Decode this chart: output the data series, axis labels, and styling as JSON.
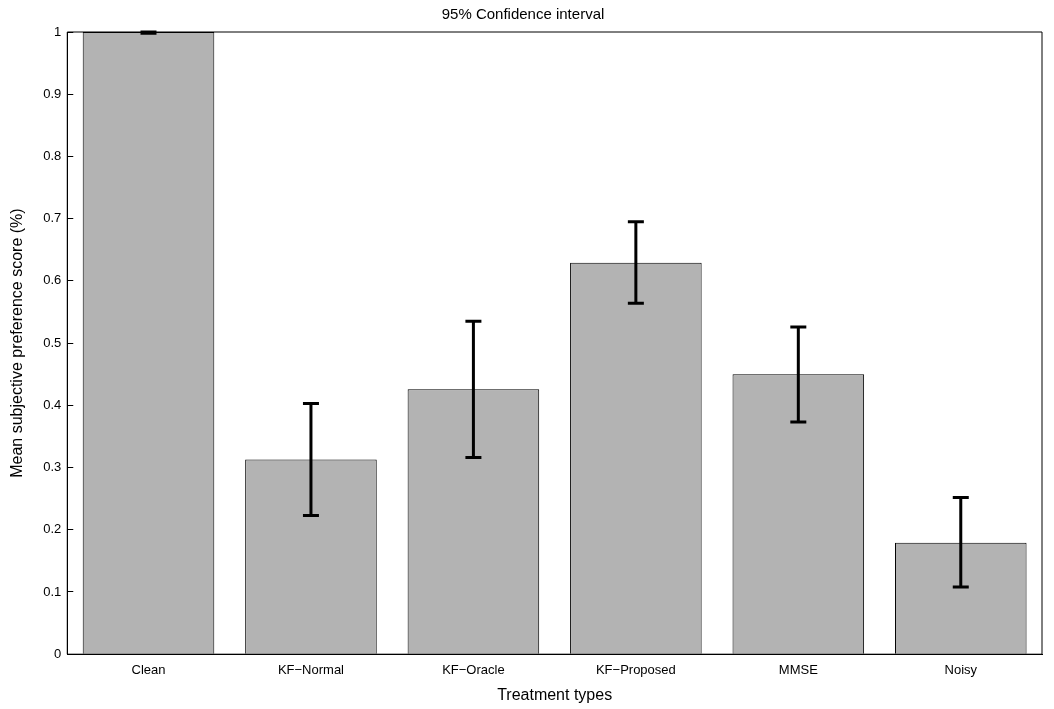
{
  "chart_data": {
    "type": "bar",
    "title": "95% Confidence interval",
    "xlabel": "Treatment types",
    "ylabel": "Mean subjective preference score (%)",
    "categories": [
      "Clean",
      "KF−Normal",
      "KF−Oracle",
      "KF−Proposed",
      "MMSE",
      "Noisy"
    ],
    "values": [
      1.0,
      0.313,
      0.426,
      0.629,
      0.45,
      0.179
    ],
    "errors": [
      [
        0.998,
        1.0
      ],
      [
        0.223,
        0.403
      ],
      [
        0.316,
        0.535
      ],
      [
        0.564,
        0.695
      ],
      [
        0.373,
        0.526
      ],
      [
        0.108,
        0.252
      ]
    ],
    "color": "#b3b3b3",
    "ylim": [
      0,
      1
    ],
    "yticks": [
      0,
      0.1,
      0.2,
      0.3,
      0.4,
      0.5,
      0.6,
      0.7,
      0.8,
      0.9,
      1
    ],
    "grid": false,
    "legend": false
  }
}
